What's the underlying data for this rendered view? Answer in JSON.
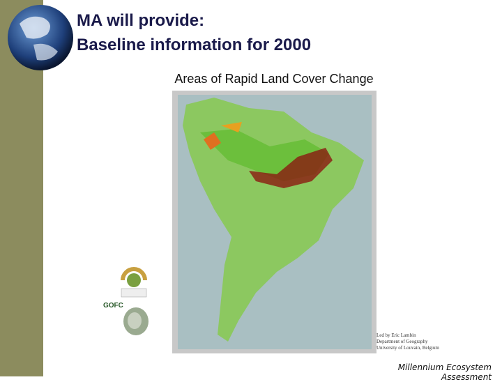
{
  "header": {
    "title_lines": [
      "MA will provide:",
      "Baseline information for 2000"
    ]
  },
  "subtitle": "Areas of Rapid Land Cover Change",
  "map_credit": [
    "Led by Eric Lambin",
    "Department of Geography",
    "University of Louvain, Belgium"
  ],
  "logos": {
    "gofc": "GOFC"
  },
  "footer": "Millennium Ecosystem Assessment"
}
